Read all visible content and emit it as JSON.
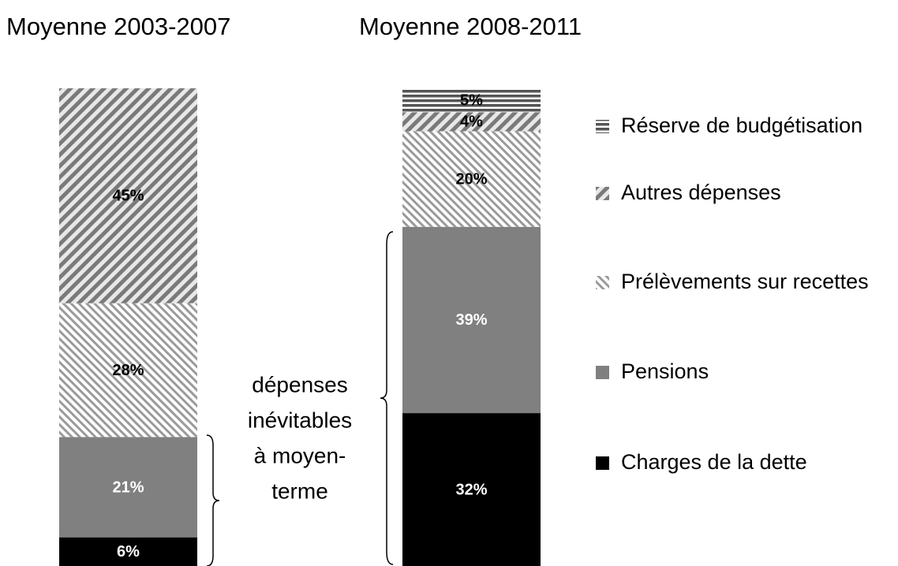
{
  "chart_data": {
    "type": "stacked_bar",
    "categories": [
      "Moyenne 2003-2007",
      "Moyenne 2008-2011"
    ],
    "series": [
      {
        "name": "Charges de la dette",
        "color": "#000000",
        "pattern": "solid",
        "values": [
          6,
          32
        ],
        "value_labels": [
          "6%",
          "32%"
        ]
      },
      {
        "name": "Pensions",
        "color": "#808080",
        "pattern": "solid",
        "values": [
          21,
          39
        ],
        "value_labels": [
          "21%",
          "39%"
        ]
      },
      {
        "name": "Prélèvements sur recettes",
        "color": "#9a9a9a",
        "pattern": "diagonal-up",
        "values": [
          28,
          20
        ],
        "value_labels": [
          "28%",
          "20%"
        ]
      },
      {
        "name": "Autres dépenses",
        "color": "#8a8a8a",
        "pattern": "diagonal-down",
        "values": [
          45,
          4
        ],
        "value_labels": [
          "45%",
          "4%"
        ]
      },
      {
        "name": "Réserve de budgétisation",
        "color": "#555555",
        "pattern": "horizontal",
        "values": [
          null,
          5
        ],
        "value_labels": [
          null,
          "5%"
        ]
      }
    ],
    "ylim": [
      0,
      100
    ],
    "annotation": [
      "dépenses",
      "inévitables",
      "à moyen-",
      "terme"
    ]
  }
}
